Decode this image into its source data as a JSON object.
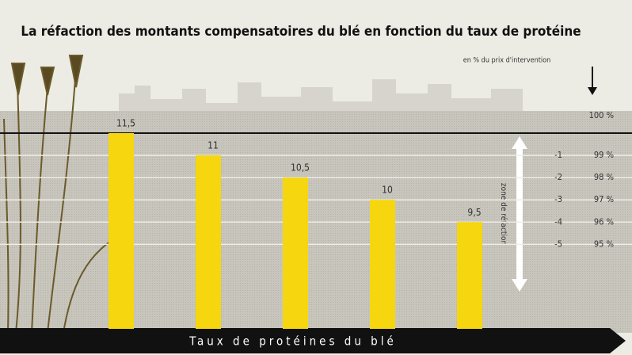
{
  "chart_data": {
    "type": "bar",
    "title": "La réfaction des montants compensatoires du blé en fonction du taux de protéine",
    "subtitle": "en % du prix d'intervention",
    "x_label": "Taux de protéines du blé",
    "zone_label": "zone de réfaction",
    "categories": [
      "11,5",
      "11",
      "10,5",
      "10",
      "9,5"
    ],
    "values": [
      100,
      99,
      98,
      97,
      96
    ],
    "color": "#f6d60e",
    "ylim": [
      91.2,
      100
    ],
    "yticks": [
      {
        "value": 100,
        "label": "100 %"
      },
      {
        "value": 99,
        "label": "99 %"
      },
      {
        "value": 98,
        "label": "98 %"
      },
      {
        "value": 97,
        "label": "97 %"
      },
      {
        "value": 96,
        "label": "96 %"
      },
      {
        "value": 95,
        "label": "95 %"
      }
    ],
    "reductions": [
      "-1",
      "-2",
      "-3",
      "-4",
      "-5"
    ],
    "grid": true
  }
}
